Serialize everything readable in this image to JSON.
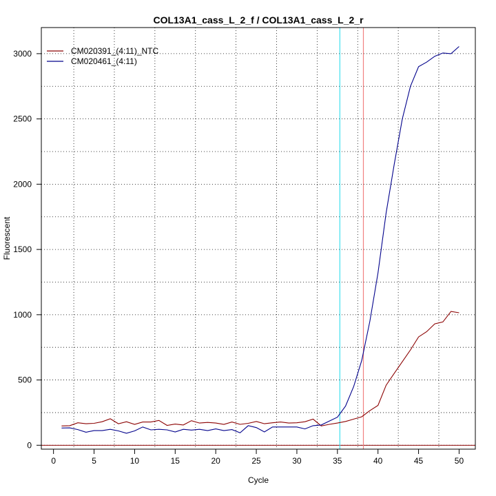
{
  "chart_data": {
    "type": "line",
    "title": "COL13A1_cass_L_2_f / COL13A1_cass_L_2_r",
    "xlabel": "Cycle",
    "ylabel": "Fluorescent",
    "xlim": [
      -1.5,
      52
    ],
    "ylim": [
      -30,
      3200
    ],
    "xticks": [
      0,
      5,
      10,
      15,
      20,
      25,
      30,
      35,
      40,
      45,
      50
    ],
    "yticks": [
      0,
      500,
      1000,
      1500,
      2000,
      2500,
      3000
    ],
    "grid": true,
    "legend_position": "top-left",
    "vertical_lines": [
      {
        "x": 35.3,
        "color": "#40e0f0"
      },
      {
        "x": 38.2,
        "color": "#f08080"
      }
    ],
    "baseline": {
      "y": 0,
      "color": "#8b0000"
    },
    "series": [
      {
        "name": "CM020391_(4:11)_NTC",
        "color": "#8b0000",
        "x": [
          1,
          2,
          3,
          4,
          5,
          6,
          7,
          8,
          9,
          10,
          11,
          12,
          13,
          14,
          15,
          16,
          17,
          18,
          19,
          20,
          21,
          22,
          23,
          24,
          25,
          26,
          27,
          28,
          29,
          30,
          31,
          32,
          33,
          34,
          35,
          36,
          37,
          38,
          39,
          40,
          41,
          42,
          43,
          44,
          45,
          46,
          47,
          48,
          49,
          50
        ],
        "values": [
          148,
          150,
          172,
          165,
          168,
          180,
          203,
          165,
          180,
          160,
          178,
          178,
          190,
          152,
          162,
          155,
          188,
          170,
          175,
          170,
          160,
          178,
          160,
          168,
          182,
          165,
          172,
          178,
          170,
          172,
          180,
          200,
          148,
          160,
          170,
          182,
          200,
          218,
          265,
          305,
          460,
          550,
          640,
          730,
          830,
          870,
          930,
          945,
          1025,
          1015
        ]
      },
      {
        "name": "CM020461_(4:11)",
        "color": "#00008b",
        "x": [
          1,
          2,
          3,
          4,
          5,
          6,
          7,
          8,
          9,
          10,
          11,
          12,
          13,
          14,
          15,
          16,
          17,
          18,
          19,
          20,
          21,
          22,
          23,
          24,
          25,
          26,
          27,
          28,
          29,
          30,
          31,
          32,
          33,
          34,
          35,
          36,
          37,
          38,
          39,
          40,
          41,
          42,
          43,
          44,
          45,
          46,
          47,
          48,
          49,
          50
        ],
        "values": [
          132,
          133,
          120,
          100,
          112,
          112,
          122,
          110,
          92,
          110,
          140,
          118,
          122,
          118,
          102,
          122,
          116,
          122,
          112,
          125,
          112,
          120,
          95,
          150,
          135,
          102,
          140,
          140,
          140,
          140,
          125,
          150,
          155,
          185,
          215,
          300,
          450,
          650,
          950,
          1320,
          1780,
          2150,
          2500,
          2750,
          2900,
          2935,
          2980,
          3005,
          3000,
          3055
        ]
      }
    ]
  }
}
